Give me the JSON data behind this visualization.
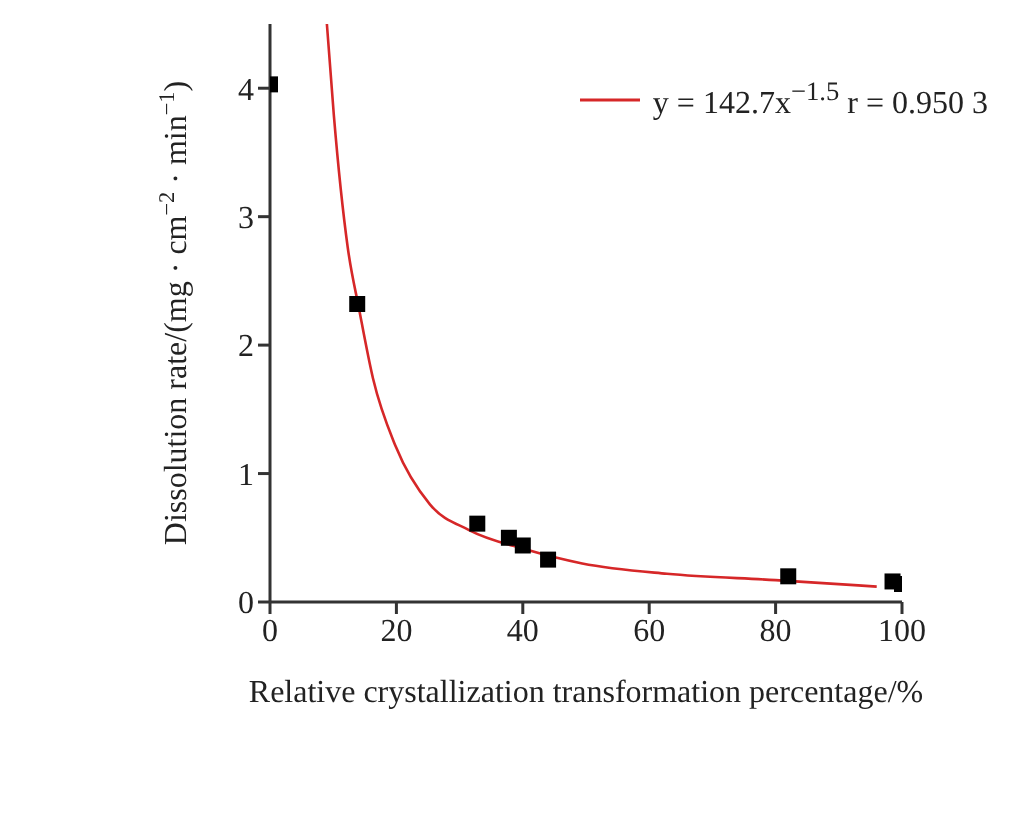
{
  "chart_data": {
    "type": "scatter",
    "xlabel": "Relative crystallization transformation percentage/%",
    "ylabel": "Dissolution rate/(mg · cm$^{−2}$ · min$^{−1}$)",
    "xlim": [
      0,
      100
    ],
    "xticks": [
      0,
      20,
      40,
      60,
      80,
      100
    ],
    "ylim": [
      0,
      4.5
    ],
    "yticks": [
      0,
      1,
      2,
      3,
      4
    ],
    "grid": false,
    "legend": "top right",
    "series": [
      {
        "color": "#000000",
        "marker": "square",
        "x": [
          0,
          13.8,
          32.8,
          37.8,
          40,
          44,
          82,
          98.5,
          100
        ],
        "values": [
          4.03,
          2.32,
          0.61,
          0.5,
          0.44,
          0.33,
          0.2,
          0.16,
          0.14
        ]
      },
      {
        "type": "line",
        "name": "y = 142.7x$^{−1.5}$  r = 0.950 3",
        "color": "#d62728",
        "marker": "none",
        "line_style": "solid",
        "x": [
          9,
          10.1,
          12.3,
          14.1,
          16.3,
          19.9,
          25.3,
          31.5,
          40.4,
          49.4,
          62.8,
          80,
          96
        ],
        "values": [
          4.5,
          3.79,
          2.76,
          2.28,
          1.74,
          1.21,
          0.76,
          0.56,
          0.41,
          0.3,
          0.22,
          0.17,
          0.12
        ]
      }
    ]
  }
}
